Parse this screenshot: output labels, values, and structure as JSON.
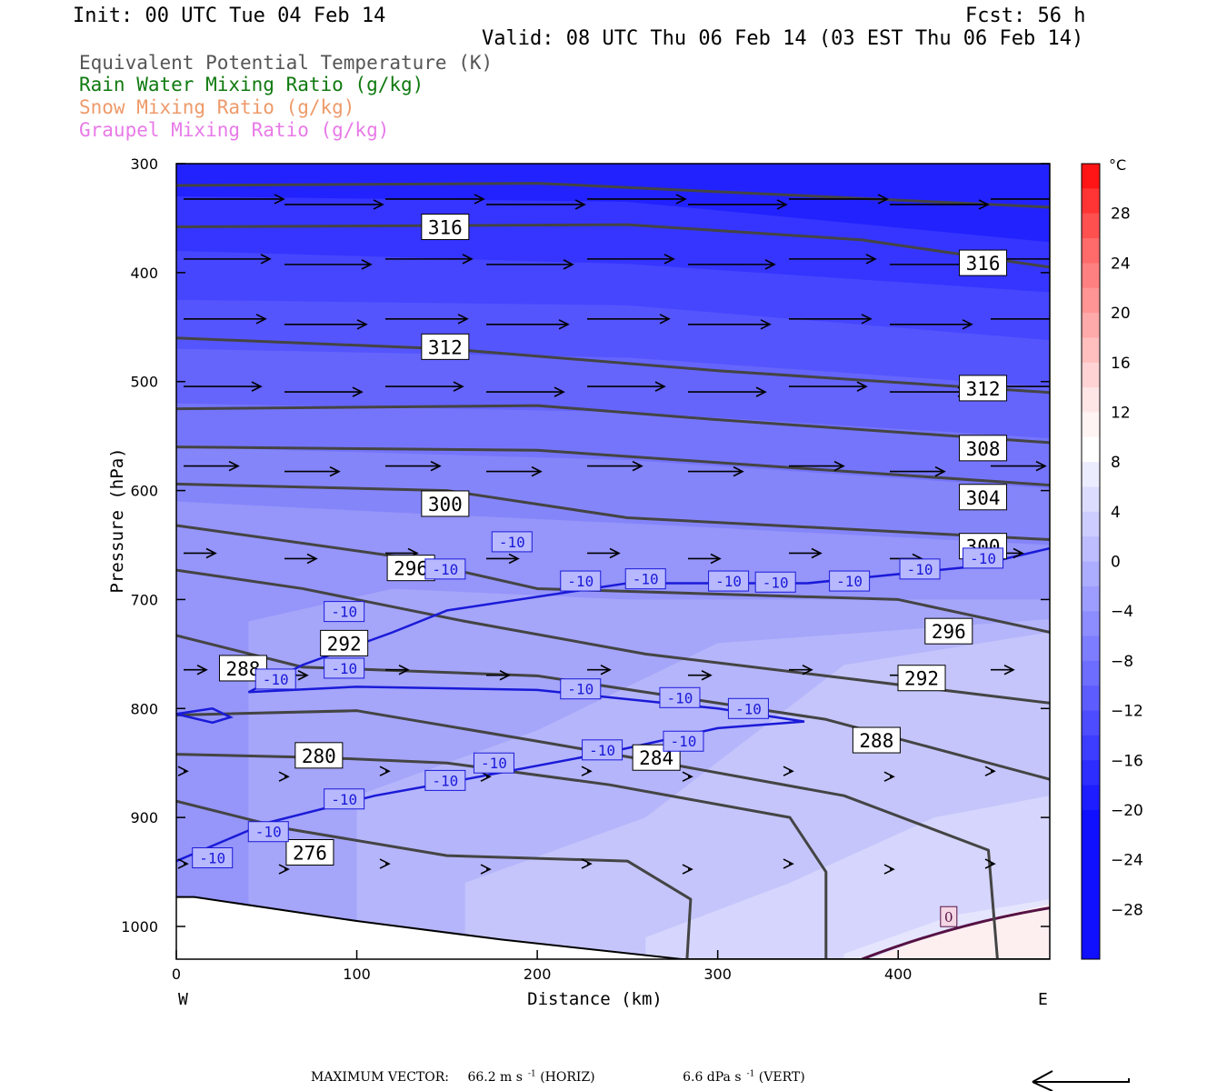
{
  "header": {
    "init": "Init: 00 UTC Tue 04 Feb 14",
    "fcst": "Fcst:   56 h",
    "valid": "Valid: 08 UTC Thu 06 Feb 14 (03 EST Thu 06 Feb 14)"
  },
  "fields": [
    {
      "label": "Equivalent Potential Temperature (K)",
      "color": "#555555"
    },
    {
      "label": "Rain Water Mixing Ratio (g/kg)",
      "color": "#0f7a0f"
    },
    {
      "label": "Snow Mixing Ratio (g/kg)",
      "color": "#ee9a6a"
    },
    {
      "label": "Graupel Mixing Ratio (g/kg)",
      "color": "#e87ae8"
    }
  ],
  "chart_data": {
    "type": "heatmap",
    "xlabel": "Distance (km)",
    "ylabel": "Pressure (hPa)",
    "xlim": [
      0,
      484
    ],
    "ylim": [
      1030,
      300
    ],
    "x_ticks": [
      0,
      100,
      200,
      300,
      400
    ],
    "y_ticks": [
      300,
      400,
      500,
      600,
      700,
      800,
      900,
      1000
    ],
    "x_end_labels": {
      "left": "W",
      "right": "E"
    },
    "colorbar": {
      "unit": "°C",
      "tick_labels": [
        28,
        24,
        20,
        16,
        12,
        8,
        4,
        0,
        -4,
        -8,
        -12,
        -16,
        -20,
        -24,
        -28
      ],
      "range": [
        -32,
        32
      ]
    },
    "temperature_label": "-10",
    "temperature_zero_label": "0",
    "theta_e_contour_labels": [
      {
        "value": "316",
        "x": 149,
        "p": 358
      },
      {
        "value": "316",
        "x": 447,
        "p": 391
      },
      {
        "value": "312",
        "x": 149,
        "p": 468
      },
      {
        "value": "312",
        "x": 447,
        "p": 506
      },
      {
        "value": "308",
        "x": 447,
        "p": 561
      },
      {
        "value": "304",
        "x": 447,
        "p": 606
      },
      {
        "value": "300",
        "x": 149,
        "p": 612
      },
      {
        "value": "300",
        "x": 447,
        "p": 651
      },
      {
        "value": "296",
        "x": 130,
        "p": 671
      },
      {
        "value": "296",
        "x": 428,
        "p": 729
      },
      {
        "value": "292",
        "x": 93,
        "p": 740
      },
      {
        "value": "292",
        "x": 413,
        "p": 772
      },
      {
        "value": "288",
        "x": 37,
        "p": 763
      },
      {
        "value": "288",
        "x": 388,
        "p": 829
      },
      {
        "value": "284",
        "x": 266,
        "p": 845
      },
      {
        "value": "280",
        "x": 79,
        "p": 843
      },
      {
        "value": "276",
        "x": 74,
        "p": 932
      }
    ],
    "wind_vectors_note": "",
    "max_vector": {
      "label": "MAXIMUM VECTOR:",
      "horiz": "66.2 m s",
      "horiz_unit": "-1",
      "horiz_suffix": "(HORIZ)",
      "vert": "6.6 dPa s",
      "vert_unit": "-1",
      "vert_suffix": "(VERT)"
    }
  }
}
